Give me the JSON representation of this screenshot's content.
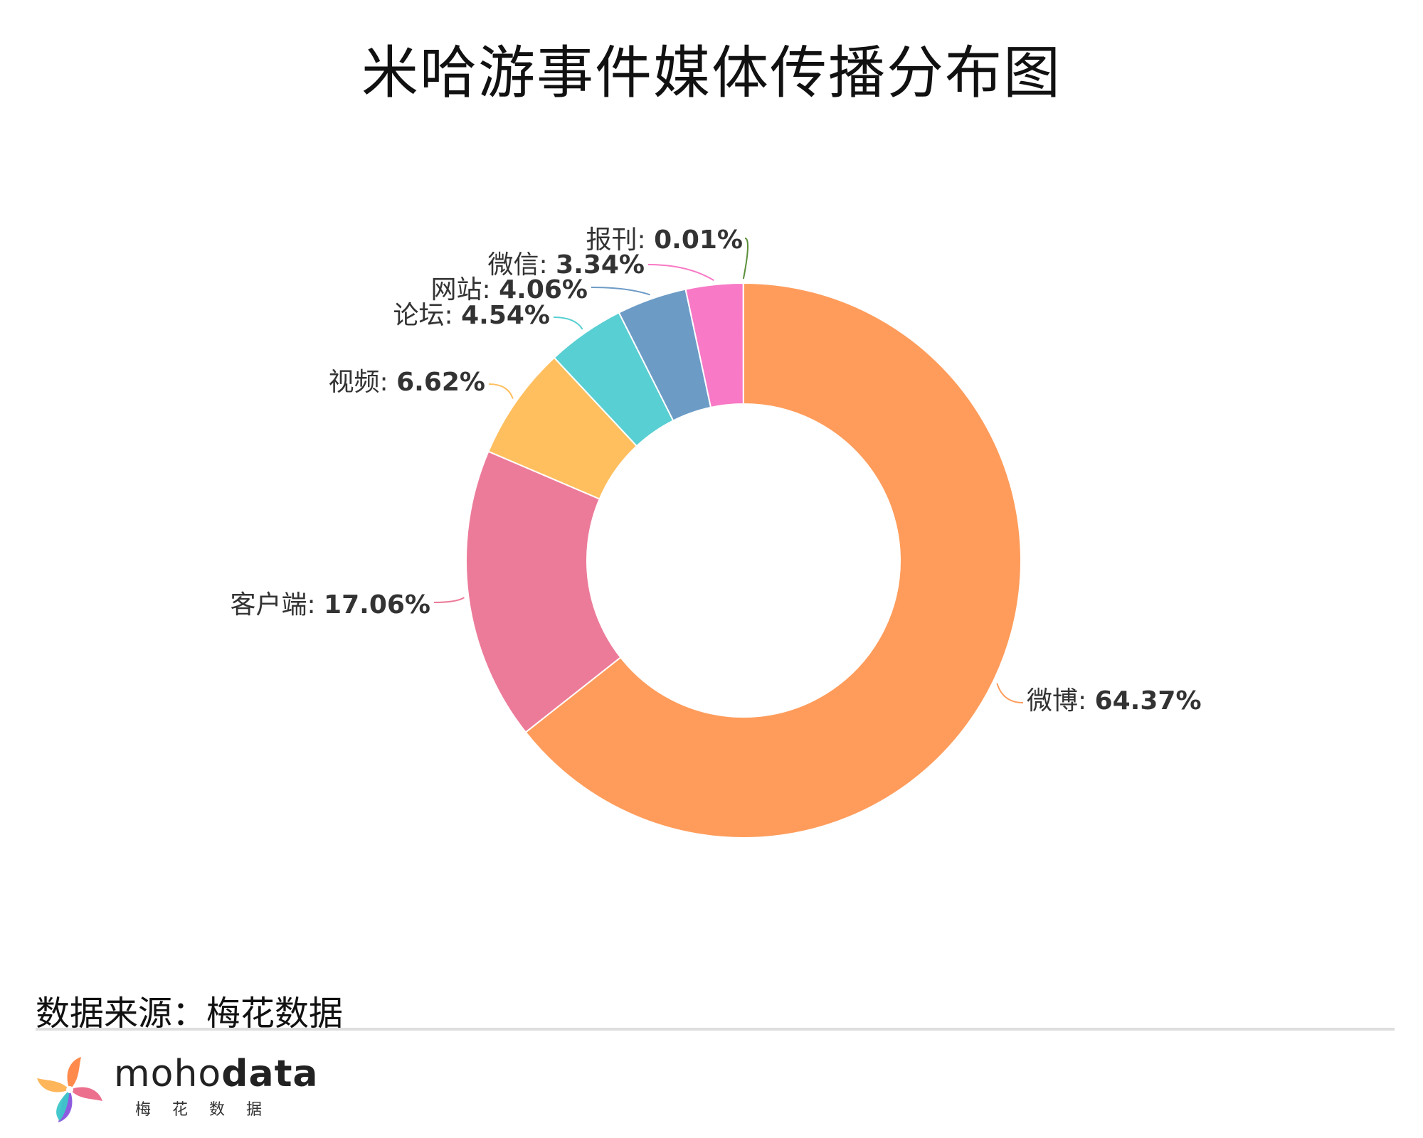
{
  "title": "米哈游事件媒体传播分布图",
  "chart_data": {
    "type": "pie",
    "donut": true,
    "title": "米哈游事件媒体传播分布图",
    "slices": [
      {
        "label": "微博",
        "value": 64.37,
        "display": "64.37%",
        "color": "#FF9C5B"
      },
      {
        "label": "客户端",
        "value": 17.06,
        "display": "17.06%",
        "color": "#EC7B9A"
      },
      {
        "label": "视频",
        "value": 6.62,
        "display": "6.62%",
        "color": "#FFBF5F"
      },
      {
        "label": "论坛",
        "value": 4.54,
        "display": "4.54%",
        "color": "#58CFD2"
      },
      {
        "label": "网站",
        "value": 4.06,
        "display": "4.06%",
        "color": "#6C9BC6"
      },
      {
        "label": "微信",
        "value": 3.34,
        "display": "3.34%",
        "color": "#F879C5"
      },
      {
        "label": "报刊",
        "value": 0.01,
        "display": "0.01%",
        "color": "#5C8F3A"
      }
    ]
  },
  "footer": {
    "source": "数据来源：梅花数据",
    "brand_light": "moho",
    "brand_bold": "data",
    "brand_sub": "梅花数据"
  }
}
